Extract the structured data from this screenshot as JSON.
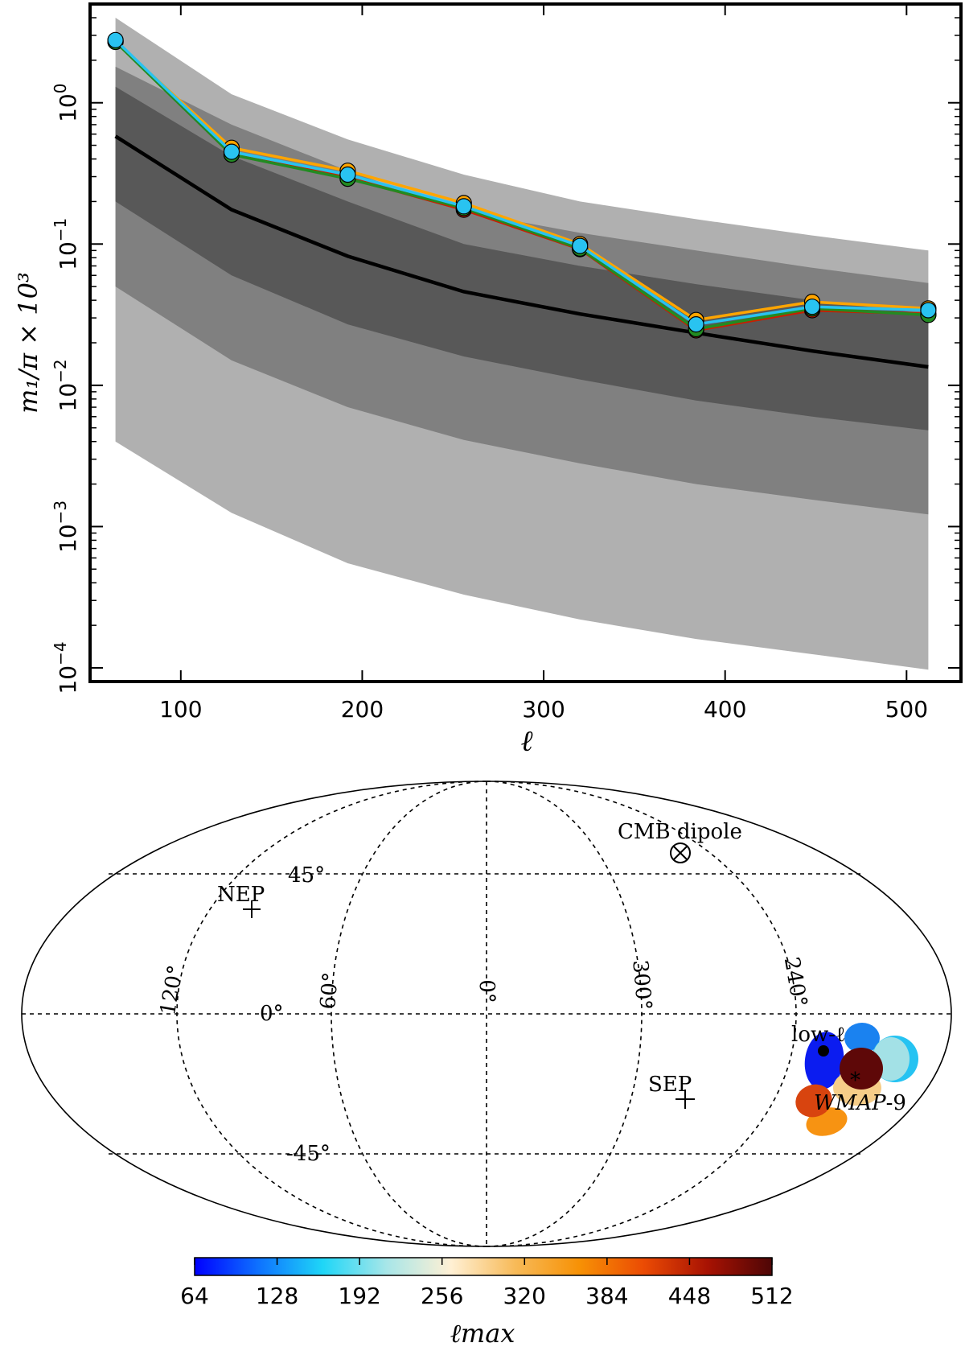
{
  "chart_data": [
    {
      "type": "line",
      "scale_y": "log",
      "xlabel": "ℓ",
      "ylabel": "m₁/π × 10³",
      "xlim": [
        50,
        530
      ],
      "ylim": [
        8e-05,
        5
      ],
      "x_ticks": [
        100,
        200,
        300,
        400,
        500
      ],
      "x_tick_labels": [
        "100",
        "200",
        "300",
        "400",
        "500"
      ],
      "y_ticks": [
        {
          "value": 1,
          "base": "10",
          "exp": "0"
        },
        {
          "value": 0.1,
          "base": "10",
          "exp": "−1"
        },
        {
          "value": 0.01,
          "base": "10",
          "exp": "−2"
        },
        {
          "value": 0.001,
          "base": "10",
          "exp": "−3"
        },
        {
          "value": 0.0001,
          "base": "10",
          "exp": "−4"
        }
      ],
      "x": [
        64,
        128,
        192,
        256,
        320,
        384,
        448,
        512
      ],
      "bands": [
        {
          "name": "outer",
          "color": "#b0b0b0",
          "upper": [
            4.0,
            1.15,
            0.55,
            0.31,
            0.2,
            0.15,
            0.115,
            0.09
          ],
          "lower": [
            0.004,
            0.00125,
            0.00055,
            0.00033,
            0.00022,
            0.00016,
            0.000125,
            9.7e-05
          ]
        },
        {
          "name": "middle",
          "color": "#808080",
          "upper": [
            1.8,
            0.7,
            0.33,
            0.17,
            0.12,
            0.09,
            0.068,
            0.053
          ],
          "lower": [
            0.05,
            0.015,
            0.007,
            0.0041,
            0.0028,
            0.002,
            0.00155,
            0.00122
          ]
        },
        {
          "name": "inner",
          "color": "#585858",
          "upper": [
            1.3,
            0.42,
            0.2,
            0.1,
            0.07,
            0.052,
            0.04,
            0.032
          ],
          "lower": [
            0.2,
            0.06,
            0.027,
            0.016,
            0.011,
            0.0078,
            0.006,
            0.0048
          ]
        }
      ],
      "median": {
        "name": "median",
        "color": "#000000",
        "values": [
          0.58,
          0.175,
          0.082,
          0.046,
          0.032,
          0.0235,
          0.0175,
          0.0135
        ]
      },
      "series": [
        {
          "name": "orange",
          "color": "#ffa500",
          "values": [
            2.7,
            0.48,
            0.33,
            0.195,
            0.1,
            0.029,
            0.039,
            0.035
          ]
        },
        {
          "name": "red",
          "color": "#c81e00",
          "values": [
            2.75,
            0.43,
            0.295,
            0.175,
            0.092,
            0.0245,
            0.034,
            0.032
          ]
        },
        {
          "name": "green",
          "color": "#228b22",
          "values": [
            2.7,
            0.43,
            0.29,
            0.18,
            0.093,
            0.025,
            0.035,
            0.0315
          ]
        },
        {
          "name": "cyan",
          "color": "#29c3f0",
          "values": [
            2.78,
            0.45,
            0.31,
            0.185,
            0.097,
            0.027,
            0.036,
            0.034
          ]
        }
      ]
    },
    {
      "type": "scatter",
      "projection": "mollweide",
      "title": "",
      "graticule_lon_labels": [
        "120°",
        "60°",
        "0°",
        "300°",
        "240°"
      ],
      "graticule_lat_labels": [
        "45°",
        "0°",
        "-45°"
      ],
      "annotations": [
        {
          "name": "cmb-dipole",
          "text": "CMB dipole",
          "glyph": "⊗",
          "lon": 264,
          "lat": 48
        },
        {
          "name": "nep",
          "text": "NEP",
          "glyph": "+",
          "lon": 96,
          "lat": 30
        },
        {
          "name": "sep",
          "text": "SEP",
          "glyph": "+",
          "lon": 276,
          "lat": -30
        },
        {
          "name": "low-ell",
          "text": "low-ℓ",
          "glyph": "●",
          "lon": 226,
          "lat": -14
        },
        {
          "name": "wmap9",
          "text": "WMAP",
          "suffix": "-9",
          "glyph": "*",
          "lon": 215,
          "lat": -22
        }
      ],
      "points": [
        {
          "ell_max": 64,
          "color": "#0b1cf0",
          "lon": 227,
          "lat": -21
        },
        {
          "ell_max": 128,
          "color": "#1a82f0",
          "lon": 213,
          "lat": -15
        },
        {
          "ell_max": 192,
          "color": "#25c3f2",
          "lon": 200,
          "lat": -17
        },
        {
          "ell_max": 256,
          "color": "#a3e1e6",
          "lon": 203,
          "lat": -16
        },
        {
          "ell_max": 320,
          "color": "#f6cd88",
          "lon": 213,
          "lat": -26
        },
        {
          "ell_max": 384,
          "color": "#f79312",
          "lon": 219,
          "lat": -32
        },
        {
          "ell_max": 448,
          "color": "#d8440f",
          "lon": 228,
          "lat": -30
        },
        {
          "ell_max": 512,
          "color": "#5e0808",
          "lon": 215,
          "lat": -21
        }
      ],
      "colorbar": {
        "label": "ℓmax",
        "min": 64,
        "max": 512,
        "ticks": [
          "64",
          "128",
          "192",
          "256",
          "320",
          "384",
          "448",
          "512"
        ],
        "colors": [
          "#0000ff",
          "#0e72ff",
          "#1fd6f7",
          "#a8e6e8",
          "#fff0d4",
          "#f7ba58",
          "#f79105",
          "#eb4b04",
          "#a71203",
          "#4e0606"
        ]
      }
    }
  ]
}
